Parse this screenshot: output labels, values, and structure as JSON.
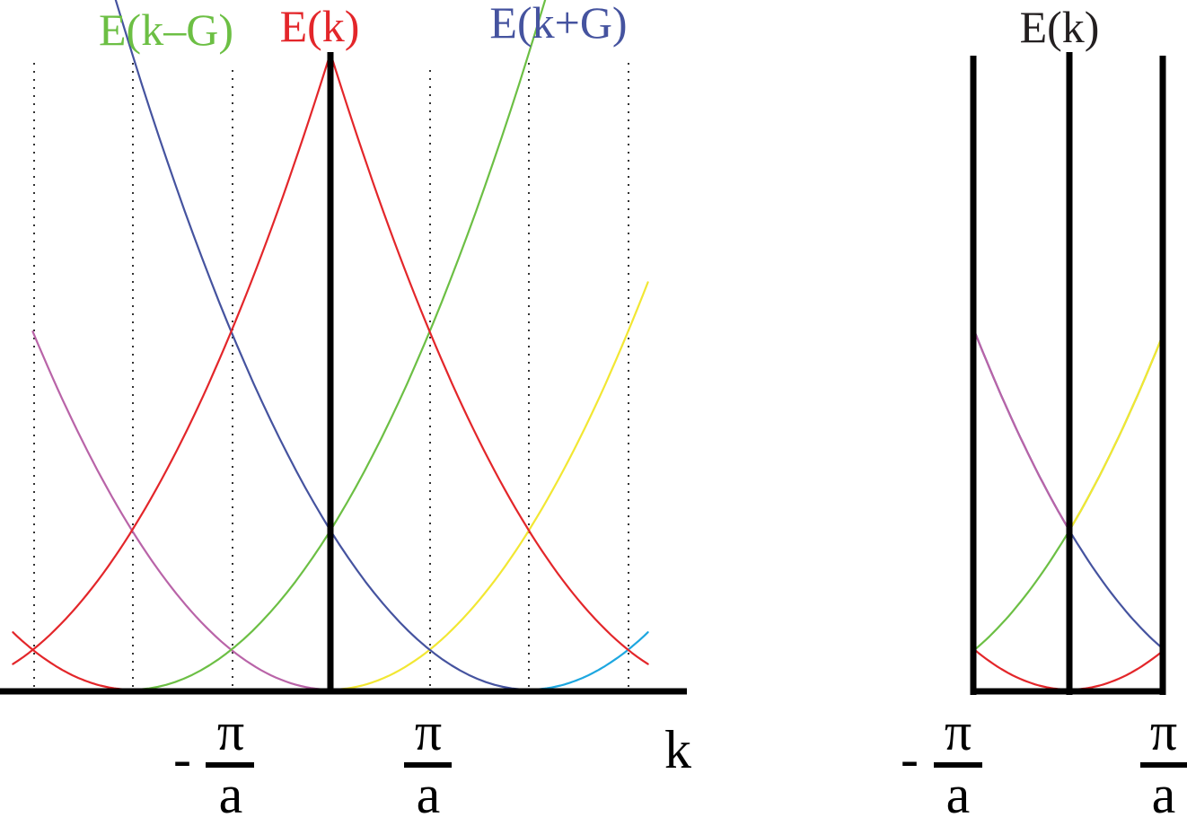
{
  "labels": {
    "e_k_minus_g": "E(k–G)",
    "e_k": "E(k)",
    "e_k_plus_g": "E(k+G)",
    "e_k_reduced": "E(k)",
    "k_axis": "k"
  },
  "ticks": {
    "minus_sign": "-",
    "pi": "π",
    "a": "a"
  },
  "colors": {
    "red": "#e3262a",
    "green": "#6cbf44",
    "blue": "#45539f",
    "magenta": "#b964a8",
    "yellow": "#f2e733",
    "cyan": "#1da7e0",
    "black": "#000000",
    "label_green": "#6cbf44",
    "label_red": "#e3262a",
    "label_blue": "#45539f",
    "label_black": "#231f20"
  }
}
